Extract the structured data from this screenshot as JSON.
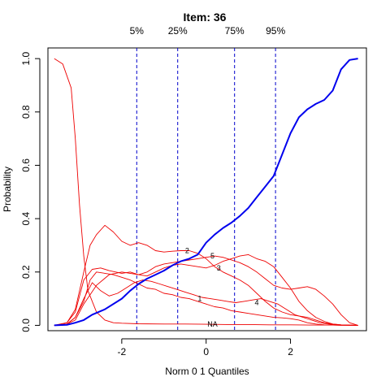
{
  "chart_data": {
    "type": "line",
    "title": "Item:  36",
    "xlabel": "Norm 0 1 Quantiles",
    "ylabel": "Probability",
    "xlim": [
      -3.75,
      3.8
    ],
    "ylim": [
      -0.02,
      1.04
    ],
    "x_ticks": [
      -2,
      0,
      2
    ],
    "y_ticks": [
      0.0,
      0.2,
      0.4,
      0.6,
      0.8,
      1.0
    ],
    "x_tick_labels": [
      "-2",
      "0",
      "2"
    ],
    "y_tick_labels": [
      "0.0",
      "0.2",
      "0.4",
      "0.6",
      "0.8",
      "1.0"
    ],
    "quantile_lines": [
      {
        "label": "5%",
        "x": -1.645
      },
      {
        "label": "25%",
        "x": -0.674
      },
      {
        "label": "75%",
        "x": 0.674
      },
      {
        "label": "95%",
        "x": 1.645
      }
    ],
    "colors": {
      "expected": "#0000ee",
      "options": "#ee0000",
      "quantiles": "#0000cc"
    },
    "series": [
      {
        "name": "",
        "role": "expected",
        "label": "",
        "x": [
          -3.6,
          -3.3,
          -3.1,
          -2.9,
          -2.7,
          -2.4,
          -2.0,
          -1.8,
          -1.6,
          -1.4,
          -1.2,
          -1.0,
          -0.8,
          -0.6,
          -0.4,
          -0.2,
          0.0,
          0.2,
          0.4,
          0.6,
          0.8,
          1.0,
          1.2,
          1.4,
          1.6,
          1.8,
          2.0,
          2.2,
          2.4,
          2.6,
          2.8,
          3.0,
          3.2,
          3.4,
          3.6
        ],
        "y": [
          0.0,
          0.002,
          0.01,
          0.02,
          0.04,
          0.06,
          0.1,
          0.13,
          0.155,
          0.175,
          0.19,
          0.205,
          0.225,
          0.24,
          0.25,
          0.265,
          0.31,
          0.34,
          0.365,
          0.385,
          0.41,
          0.44,
          0.48,
          0.52,
          0.56,
          0.64,
          0.72,
          0.78,
          0.81,
          0.83,
          0.845,
          0.88,
          0.96,
          0.995,
          1.0
        ]
      },
      {
        "name": "",
        "role": "option",
        "label": "NA",
        "x": [
          -3.6,
          -3.4,
          -3.2,
          -3.1,
          -3.0,
          -2.9,
          -2.8,
          -2.6,
          -2.4,
          -2.2,
          -2.0,
          -1.6,
          -1.0,
          -0.5,
          0.0,
          0.5,
          1.0,
          1.5,
          2.0,
          2.5,
          3.0,
          3.6
        ],
        "y": [
          1.0,
          0.98,
          0.89,
          0.7,
          0.45,
          0.26,
          0.13,
          0.05,
          0.02,
          0.01,
          0.008,
          0.006,
          0.005,
          0.005,
          0.004,
          0.003,
          0.003,
          0.002,
          0.002,
          0.001,
          0.001,
          0.0
        ]
      },
      {
        "name": "",
        "role": "option",
        "label": "1",
        "x": [
          -3.6,
          -3.3,
          -3.1,
          -2.9,
          -2.75,
          -2.6,
          -2.4,
          -2.2,
          -2.0,
          -1.8,
          -1.6,
          -1.4,
          -1.2,
          -1.0,
          -0.8,
          -0.6,
          -0.4,
          -0.2,
          0.0,
          0.2,
          0.4,
          0.6,
          0.8,
          1.0,
          1.2,
          1.4,
          1.6,
          1.8,
          2.0,
          2.2,
          2.4,
          2.6,
          2.8,
          3.0,
          3.2,
          3.6
        ],
        "y": [
          0.0,
          0.005,
          0.03,
          0.09,
          0.17,
          0.2,
          0.195,
          0.19,
          0.18,
          0.17,
          0.155,
          0.14,
          0.135,
          0.12,
          0.115,
          0.105,
          0.1,
          0.09,
          0.08,
          0.07,
          0.065,
          0.055,
          0.05,
          0.045,
          0.04,
          0.035,
          0.03,
          0.028,
          0.025,
          0.02,
          0.01,
          0.005,
          0.002,
          0.001,
          0.0,
          0.0
        ]
      },
      {
        "name": "",
        "role": "option",
        "label": "2",
        "x": [
          -3.6,
          -3.3,
          -3.1,
          -2.9,
          -2.75,
          -2.6,
          -2.4,
          -2.2,
          -2.0,
          -1.8,
          -1.6,
          -1.4,
          -1.2,
          -1.0,
          -0.8,
          -0.6,
          -0.4,
          -0.2,
          0.0,
          0.2,
          0.4,
          0.6,
          0.8,
          1.0,
          1.2,
          1.4,
          1.6,
          1.8,
          2.0,
          2.2,
          2.4,
          2.6,
          2.8,
          3.0,
          3.2,
          3.6
        ],
        "y": [
          0.0,
          0.01,
          0.06,
          0.2,
          0.3,
          0.34,
          0.375,
          0.35,
          0.315,
          0.3,
          0.31,
          0.3,
          0.28,
          0.275,
          0.278,
          0.28,
          0.28,
          0.27,
          0.25,
          0.22,
          0.2,
          0.185,
          0.17,
          0.15,
          0.12,
          0.09,
          0.065,
          0.05,
          0.04,
          0.035,
          0.03,
          0.02,
          0.01,
          0.005,
          0.002,
          0.0
        ]
      },
      {
        "name": "",
        "role": "option",
        "label": "3",
        "x": [
          -3.6,
          -3.3,
          -3.1,
          -2.9,
          -2.7,
          -2.5,
          -2.3,
          -2.0,
          -1.8,
          -1.6,
          -1.4,
          -1.2,
          -1.0,
          -0.8,
          -0.6,
          -0.4,
          -0.2,
          0.0,
          0.2,
          0.4,
          0.6,
          0.8,
          1.0,
          1.2,
          1.4,
          1.6,
          1.8,
          2.0,
          2.2,
          2.4,
          2.6,
          2.8,
          3.0,
          3.2,
          3.6
        ],
        "y": [
          0.0,
          0.01,
          0.05,
          0.17,
          0.21,
          0.215,
          0.205,
          0.195,
          0.2,
          0.19,
          0.185,
          0.2,
          0.215,
          0.225,
          0.23,
          0.225,
          0.22,
          0.215,
          0.225,
          0.24,
          0.25,
          0.26,
          0.265,
          0.25,
          0.24,
          0.22,
          0.18,
          0.14,
          0.09,
          0.055,
          0.03,
          0.015,
          0.005,
          0.002,
          0.0
        ]
      },
      {
        "name": "",
        "role": "option",
        "label": "4",
        "x": [
          -3.6,
          -3.3,
          -3.1,
          -2.9,
          -2.7,
          -2.5,
          -2.3,
          -2.1,
          -1.9,
          -1.7,
          -1.5,
          -1.3,
          -1.1,
          -0.9,
          -0.7,
          -0.5,
          -0.3,
          -0.1,
          0.1,
          0.3,
          0.5,
          0.7,
          0.9,
          1.1,
          1.3,
          1.5,
          1.7,
          1.9,
          2.1,
          2.3,
          2.5,
          2.7,
          2.9,
          3.1,
          3.3,
          3.6
        ],
        "y": [
          0.0,
          0.005,
          0.03,
          0.1,
          0.16,
          0.13,
          0.11,
          0.12,
          0.14,
          0.16,
          0.17,
          0.165,
          0.155,
          0.145,
          0.135,
          0.125,
          0.115,
          0.105,
          0.1,
          0.095,
          0.09,
          0.085,
          0.09,
          0.095,
          0.1,
          0.09,
          0.08,
          0.06,
          0.04,
          0.03,
          0.02,
          0.01,
          0.005,
          0.002,
          0.001,
          0.0
        ]
      },
      {
        "name": "",
        "role": "option",
        "label": "5",
        "x": [
          -3.6,
          -3.3,
          -3.1,
          -2.9,
          -2.6,
          -2.3,
          -2.0,
          -1.8,
          -1.6,
          -1.4,
          -1.2,
          -1.0,
          -0.8,
          -0.6,
          -0.4,
          -0.2,
          0.0,
          0.2,
          0.4,
          0.6,
          0.8,
          1.0,
          1.2,
          1.4,
          1.6,
          1.8,
          2.0,
          2.2,
          2.4,
          2.6,
          2.8,
          3.0,
          3.2,
          3.4,
          3.6
        ],
        "y": [
          0.0,
          0.005,
          0.02,
          0.08,
          0.15,
          0.19,
          0.2,
          0.195,
          0.19,
          0.2,
          0.22,
          0.23,
          0.235,
          0.24,
          0.245,
          0.25,
          0.255,
          0.26,
          0.255,
          0.245,
          0.235,
          0.22,
          0.2,
          0.175,
          0.15,
          0.14,
          0.135,
          0.14,
          0.145,
          0.135,
          0.11,
          0.08,
          0.04,
          0.01,
          0.0
        ]
      }
    ],
    "curve_label_positions": [
      {
        "label": "2",
        "x": -0.45,
        "y": 0.28
      },
      {
        "label": "5",
        "x": 0.15,
        "y": 0.26
      },
      {
        "label": "3",
        "x": 0.3,
        "y": 0.215
      },
      {
        "label": "1",
        "x": -0.15,
        "y": 0.1
      },
      {
        "label": "4",
        "x": 1.2,
        "y": 0.085
      },
      {
        "label": "NA",
        "x": 0.15,
        "y": 0.005
      }
    ]
  }
}
